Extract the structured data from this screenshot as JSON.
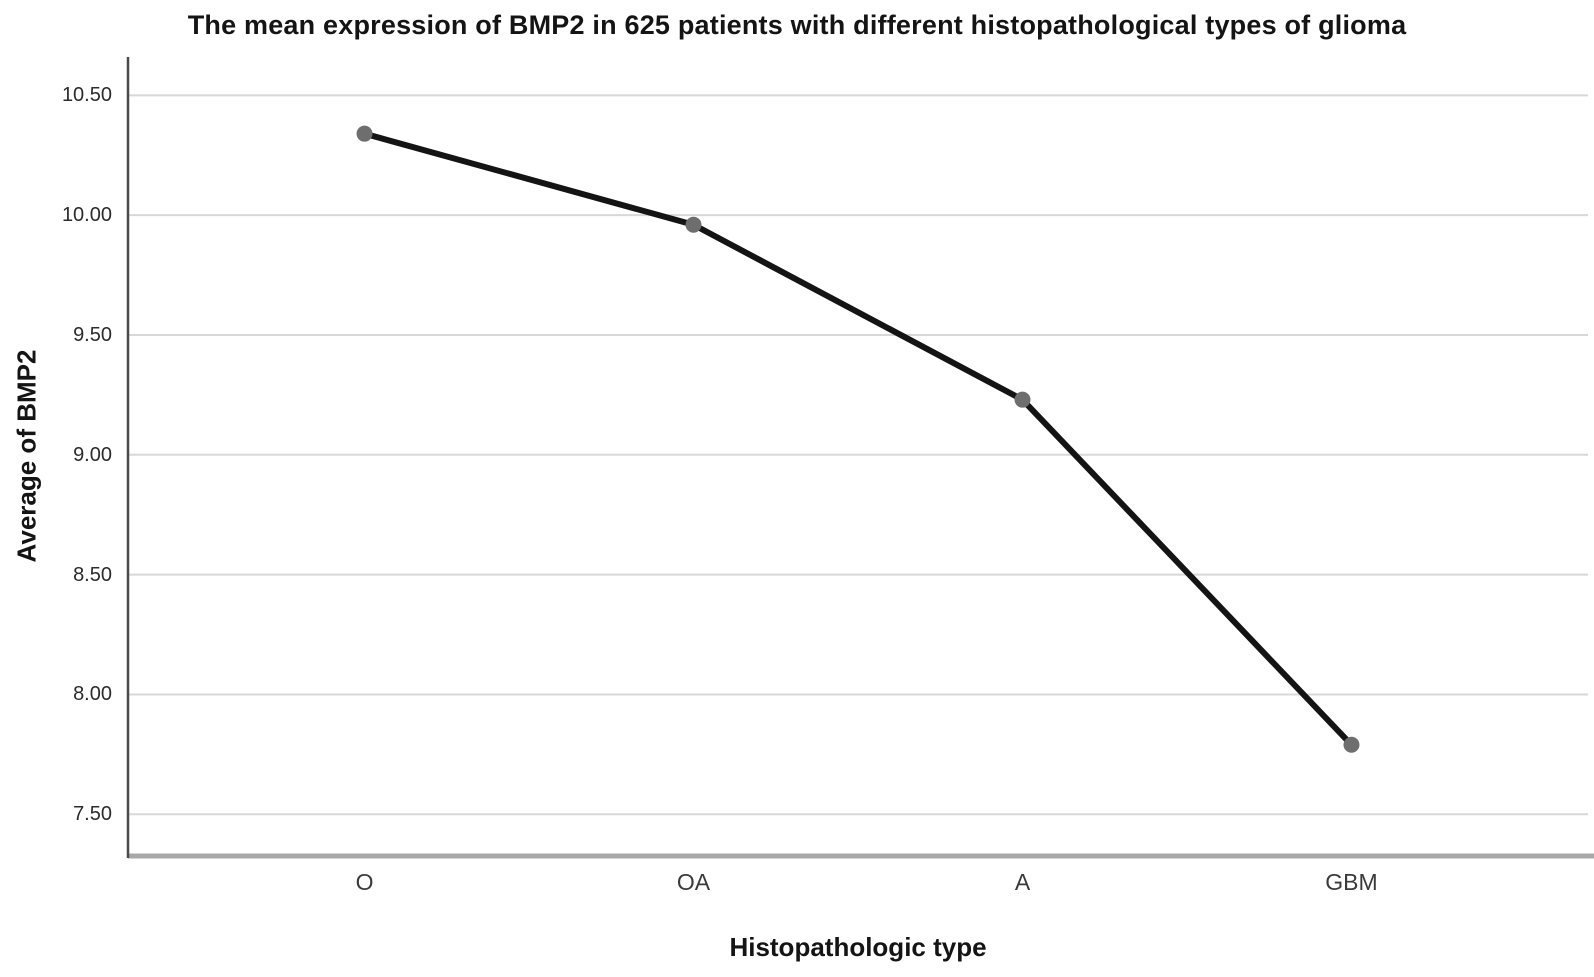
{
  "chart_data": {
    "type": "line",
    "title": "The mean expression of BMP2 in 625 patients with different histopathological types of glioma",
    "xlabel": "Histopathologic type",
    "ylabel": "Average of BMP2",
    "categories": [
      "O",
      "OA",
      "A",
      "GBM"
    ],
    "series": [
      {
        "name": "Average of BMP2",
        "values": [
          10.34,
          9.96,
          9.23,
          7.79
        ]
      }
    ],
    "ytick_values": [
      10.5,
      10.0,
      9.5,
      9.0,
      8.5,
      8.0,
      7.5
    ],
    "ytick_labels": [
      "10.50",
      "10.00",
      "9.50",
      "9.00",
      "8.50",
      "8.00",
      "7.50"
    ],
    "ylim": [
      7.33,
      10.66
    ],
    "grid": "horizontal",
    "legend": "none",
    "colors": {
      "line": "#141414",
      "marker": "#6e6e6e",
      "grid": "#d8d8d8",
      "y_axis": "#4a4a4a",
      "x_axis": "#a8a8a8",
      "background": "#ffffff"
    }
  }
}
